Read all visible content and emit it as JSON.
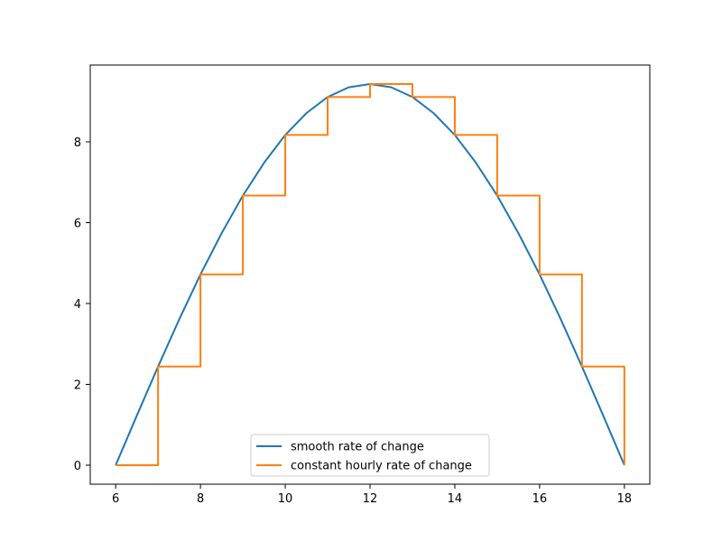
{
  "chart_data": {
    "type": "line",
    "title": "",
    "xlabel": "",
    "ylabel": "",
    "xlim": [
      5.4,
      18.6
    ],
    "ylim": [
      -0.47,
      9.9
    ],
    "x_ticks": [
      6,
      8,
      10,
      12,
      14,
      16,
      18
    ],
    "y_ticks": [
      0,
      2,
      4,
      6,
      8
    ],
    "x_tick_labels": [
      "6",
      "8",
      "10",
      "12",
      "14",
      "16",
      "18"
    ],
    "y_tick_labels": [
      "0",
      "2",
      "4",
      "6",
      "8"
    ],
    "grid": false,
    "legend_position": "lower-center",
    "series": [
      {
        "name": "smooth rate of change",
        "kind": "line",
        "color": "#1f77b4",
        "x": [
          6,
          6.5,
          7,
          7.5,
          8,
          8.5,
          9,
          9.5,
          10,
          10.5,
          11,
          11.5,
          12,
          12.5,
          13,
          13.5,
          14,
          14.5,
          15,
          15.5,
          16,
          16.5,
          17,
          17.5,
          18
        ],
        "y": [
          0,
          1.23,
          2.44,
          3.61,
          4.72,
          5.74,
          6.67,
          7.48,
          8.17,
          8.71,
          9.11,
          9.35,
          9.43,
          9.35,
          9.11,
          8.71,
          8.17,
          7.48,
          6.67,
          5.74,
          4.72,
          3.61,
          2.44,
          1.23,
          0
        ]
      },
      {
        "name": "constant hourly rate of change",
        "kind": "step",
        "color": "#ff7f0e",
        "x": [
          6,
          7,
          8,
          9,
          10,
          11,
          12,
          13,
          14,
          15,
          16,
          17,
          18
        ],
        "y": [
          0,
          2.44,
          4.72,
          6.67,
          8.17,
          9.11,
          9.43,
          9.11,
          8.17,
          6.67,
          4.72,
          2.44,
          0
        ]
      }
    ]
  }
}
